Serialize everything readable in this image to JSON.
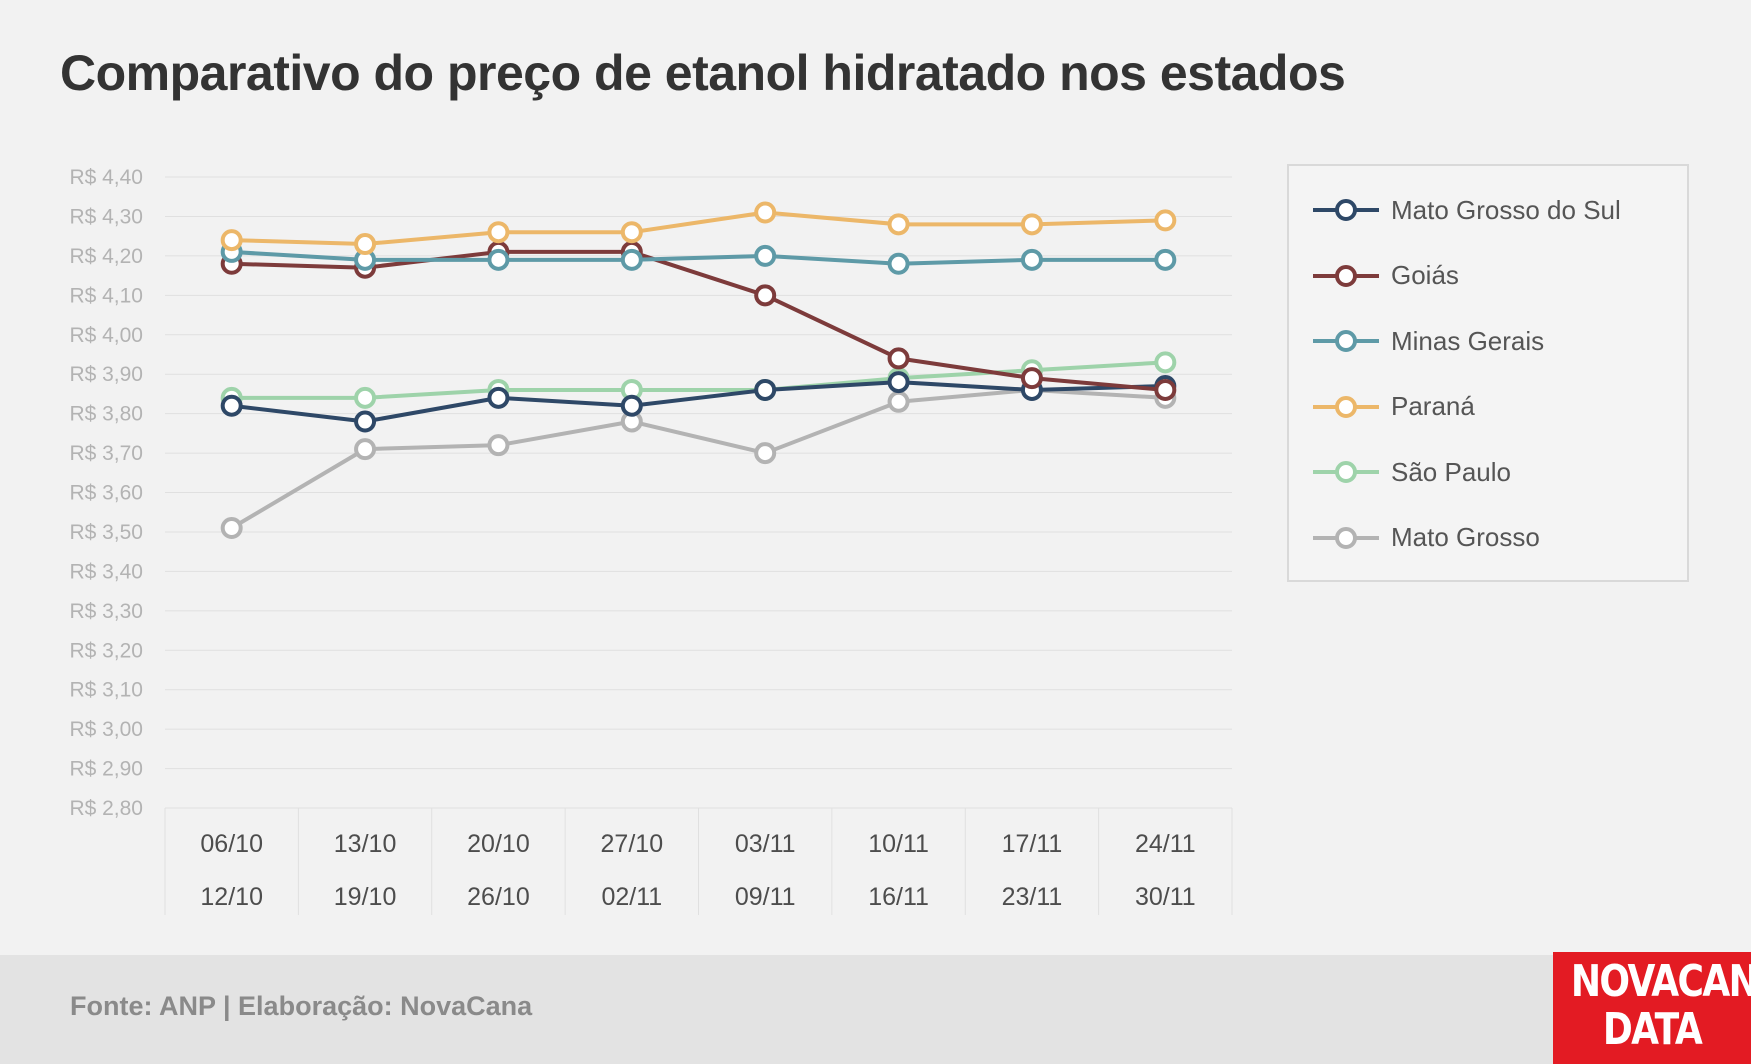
{
  "title": "Comparativo do preço de etanol hidratado nos estados",
  "source": "Fonte: ANP | Elaboração: NovaCana",
  "logo": {
    "line1": "NOVACANA",
    "line2": "DATA"
  },
  "colors": {
    "background": "#f2f2f2",
    "grid": "#e0e0e0",
    "logo_red": "#e31b23"
  },
  "chart_data": {
    "type": "line",
    "title": "Comparativo do preço de etanol hidratado nos estados",
    "xlabel": "",
    "ylabel": "",
    "grid": true,
    "legend_position": "right",
    "ylim": [
      2.8,
      4.4
    ],
    "y_tick_labels": [
      "R$ 4,40",
      "R$ 4,30",
      "R$ 4,20",
      "R$ 4,10",
      "R$ 4,00",
      "R$ 3,90",
      "R$ 3,80",
      "R$ 3,70",
      "R$ 3,60",
      "R$ 3,50",
      "R$ 3,40",
      "R$ 3,30",
      "R$ 3,20",
      "R$ 3,10",
      "R$ 3,00",
      "R$ 2,90",
      "R$ 2,80"
    ],
    "y_tick_values": [
      4.4,
      4.3,
      4.2,
      4.1,
      4.0,
      3.9,
      3.8,
      3.7,
      3.6,
      3.5,
      3.4,
      3.3,
      3.2,
      3.1,
      3.0,
      2.9,
      2.8
    ],
    "categories": [
      {
        "start": "06/10",
        "end": "12/10"
      },
      {
        "start": "13/10",
        "end": "19/10"
      },
      {
        "start": "20/10",
        "end": "26/10"
      },
      {
        "start": "27/10",
        "end": "02/11"
      },
      {
        "start": "03/11",
        "end": "09/11"
      },
      {
        "start": "10/11",
        "end": "16/11"
      },
      {
        "start": "17/11",
        "end": "23/11"
      },
      {
        "start": "24/11",
        "end": "30/11"
      }
    ],
    "series": [
      {
        "name": "Mato Grosso",
        "color": "#b3b3b3",
        "values": [
          3.51,
          3.71,
          3.72,
          3.78,
          3.7,
          3.83,
          3.86,
          3.84
        ]
      },
      {
        "name": "São Paulo",
        "color": "#9ed3aa",
        "values": [
          3.84,
          3.84,
          3.86,
          3.86,
          3.86,
          3.89,
          3.91,
          3.93
        ]
      },
      {
        "name": "Mato Grosso do Sul",
        "color": "#2e4867",
        "values": [
          3.82,
          3.78,
          3.84,
          3.82,
          3.86,
          3.88,
          3.86,
          3.87
        ]
      },
      {
        "name": "Goiás",
        "color": "#7d3b3b",
        "values": [
          4.18,
          4.17,
          4.21,
          4.21,
          4.1,
          3.94,
          3.89,
          3.86
        ]
      },
      {
        "name": "Minas Gerais",
        "color": "#5e9aa7",
        "values": [
          4.21,
          4.19,
          4.19,
          4.19,
          4.2,
          4.18,
          4.19,
          4.19
        ]
      },
      {
        "name": "Paraná",
        "color": "#ecb769",
        "values": [
          4.24,
          4.23,
          4.26,
          4.26,
          4.31,
          4.28,
          4.28,
          4.29
        ]
      }
    ],
    "legend_order": [
      "Mato Grosso do Sul",
      "Goiás",
      "Minas Gerais",
      "Paraná",
      "São Paulo",
      "Mato Grosso"
    ]
  }
}
